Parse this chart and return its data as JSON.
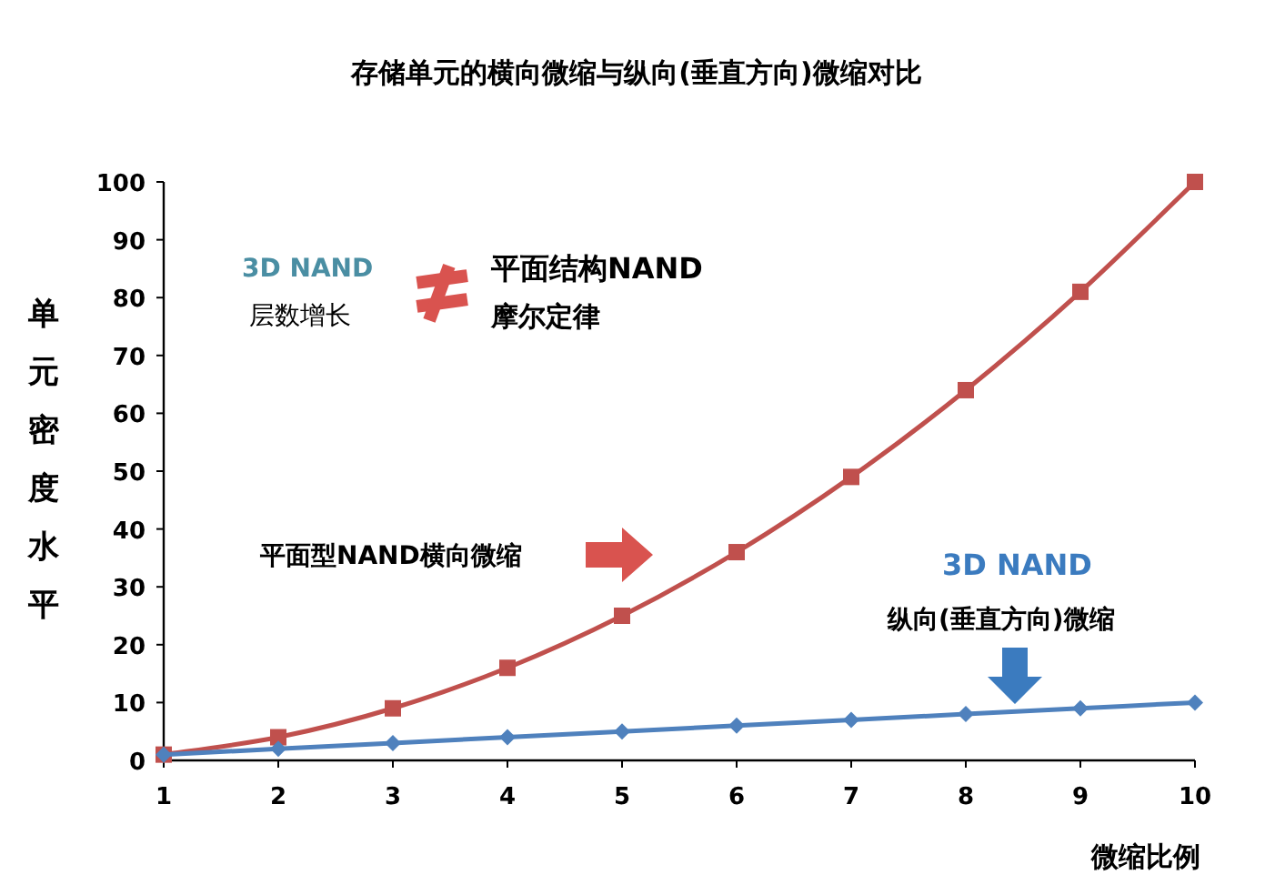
{
  "chart_data": {
    "type": "line",
    "title": "存储单元的横向微缩与纵向(垂直方向)微缩对比",
    "xlabel": "微缩比例",
    "ylabel": "单元密度水平",
    "x": [
      1,
      2,
      3,
      4,
      5,
      6,
      7,
      8,
      9,
      10
    ],
    "series": [
      {
        "color": "#c0504d",
        "marker": "square",
        "values": [
          1,
          4,
          9,
          16,
          25,
          36,
          49,
          64,
          81,
          100
        ]
      },
      {
        "color": "#4f81bd",
        "marker": "diamond",
        "values": [
          1,
          2,
          3,
          4,
          5,
          6,
          7,
          8,
          9,
          10
        ]
      }
    ],
    "xlim": [
      1,
      10
    ],
    "xticks": [
      1,
      2,
      3,
      4,
      5,
      6,
      7,
      8,
      9,
      10
    ],
    "ylim": [
      0,
      100
    ],
    "yticks": [
      0,
      10,
      20,
      30,
      40,
      50,
      60,
      70,
      80,
      90,
      100
    ],
    "grid": false,
    "annotations": [
      "3D NAND",
      "层数增长",
      "平面结构NAND",
      "摩尔定律",
      "平面型NAND横向微缩",
      "3D NAND",
      "纵向(垂直方向)微缩"
    ]
  }
}
